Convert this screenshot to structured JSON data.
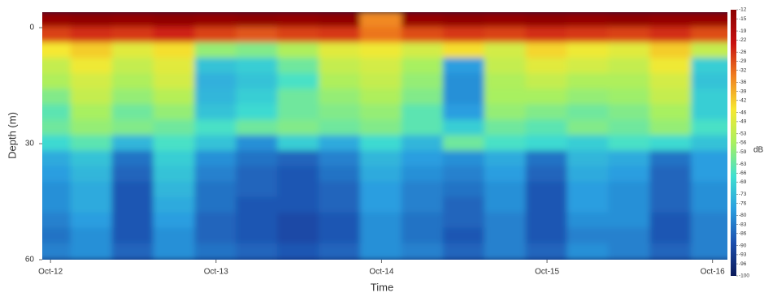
{
  "chart_data": {
    "type": "heatmap",
    "xlabel": "Time",
    "ylabel": "Depth (m)",
    "zlabel": "dB",
    "x": [
      12.0,
      12.25,
      12.5,
      12.75,
      13.0,
      13.25,
      13.5,
      13.75,
      14.0,
      14.25,
      14.5,
      14.75,
      15.0,
      15.25,
      15.5,
      15.75,
      16.0
    ],
    "y": [
      -2,
      2,
      6,
      10,
      14,
      18,
      22,
      26,
      30,
      34,
      38,
      42,
      46,
      50,
      54,
      58
    ],
    "values": [
      [
        -14,
        -13,
        -14,
        -13,
        -14,
        -13,
        -14,
        -13,
        -35,
        -14,
        -13,
        -14,
        -13,
        -14,
        -13,
        -14,
        -14
      ],
      [
        -28,
        -26,
        -27,
        -25,
        -28,
        -30,
        -28,
        -27,
        -33,
        -29,
        -27,
        -28,
        -26,
        -27,
        -28,
        -26,
        -29
      ],
      [
        -45,
        -42,
        -48,
        -44,
        -58,
        -60,
        -55,
        -48,
        -46,
        -50,
        -44,
        -50,
        -43,
        -46,
        -48,
        -42,
        -52
      ],
      [
        -52,
        -46,
        -52,
        -48,
        -72,
        -70,
        -62,
        -52,
        -50,
        -56,
        -78,
        -52,
        -48,
        -50,
        -52,
        -46,
        -70
      ],
      [
        -55,
        -50,
        -55,
        -50,
        -75,
        -72,
        -66,
        -55,
        -52,
        -58,
        -80,
        -55,
        -52,
        -55,
        -55,
        -50,
        -72
      ],
      [
        -60,
        -52,
        -58,
        -54,
        -74,
        -70,
        -62,
        -58,
        -55,
        -60,
        -80,
        -56,
        -56,
        -58,
        -57,
        -52,
        -70
      ],
      [
        -64,
        -56,
        -62,
        -58,
        -72,
        -68,
        -62,
        -60,
        -58,
        -64,
        -78,
        -58,
        -60,
        -62,
        -60,
        -56,
        -70
      ],
      [
        -62,
        -58,
        -60,
        -62,
        -66,
        -62,
        -60,
        -62,
        -60,
        -64,
        -70,
        -62,
        -64,
        -60,
        -62,
        -58,
        -66
      ],
      [
        -68,
        -64,
        -74,
        -66,
        -72,
        -80,
        -70,
        -76,
        -68,
        -74,
        -62,
        -66,
        -68,
        -70,
        -66,
        -68,
        -72
      ],
      [
        -76,
        -72,
        -84,
        -70,
        -80,
        -84,
        -86,
        -82,
        -74,
        -78,
        -80,
        -76,
        -84,
        -74,
        -76,
        -84,
        -78
      ],
      [
        -78,
        -74,
        -86,
        -72,
        -82,
        -86,
        -88,
        -84,
        -76,
        -80,
        -82,
        -78,
        -86,
        -76,
        -78,
        -86,
        -78
      ],
      [
        -80,
        -76,
        -88,
        -74,
        -84,
        -86,
        -88,
        -86,
        -78,
        -82,
        -84,
        -80,
        -88,
        -78,
        -80,
        -86,
        -80
      ],
      [
        -80,
        -76,
        -88,
        -76,
        -84,
        -88,
        -88,
        -86,
        -78,
        -82,
        -86,
        -80,
        -88,
        -78,
        -80,
        -86,
        -80
      ],
      [
        -82,
        -78,
        -88,
        -78,
        -86,
        -88,
        -90,
        -88,
        -80,
        -84,
        -86,
        -82,
        -88,
        -80,
        -80,
        -88,
        -82
      ],
      [
        -84,
        -80,
        -88,
        -80,
        -86,
        -88,
        -90,
        -88,
        -80,
        -84,
        -88,
        -82,
        -88,
        -82,
        -82,
        -88,
        -82
      ],
      [
        -82,
        -80,
        -86,
        -80,
        -84,
        -86,
        -88,
        -86,
        -80,
        -82,
        -86,
        -82,
        -86,
        -80,
        -82,
        -86,
        -82
      ]
    ],
    "xlim": [
      11.95,
      16.09
    ],
    "xticks": [
      {
        "value": 12,
        "label": "Oct-12"
      },
      {
        "value": 13,
        "label": "Oct-13"
      },
      {
        "value": 14,
        "label": "Oct-14"
      },
      {
        "value": 15,
        "label": "Oct-15"
      },
      {
        "value": 16,
        "label": "Oct-16"
      }
    ],
    "ylim": [
      60,
      -4
    ],
    "yticks": [
      0,
      30,
      60
    ],
    "zlim": [
      -100,
      -12
    ],
    "zticks": [
      -12,
      -15,
      -19,
      -22,
      -26,
      -29,
      -32,
      -36,
      -39,
      -42,
      -46,
      -49,
      -53,
      -56,
      -59,
      -63,
      -66,
      -69,
      -73,
      -76,
      -80,
      -83,
      -86,
      -90,
      -93,
      -96,
      -100
    ],
    "colorscale": [
      "#0b1a5a",
      "#1c4fae",
      "#2a9ee0",
      "#3fe0d0",
      "#a8f060",
      "#f6e830",
      "#f08020",
      "#c81010",
      "#8a0000"
    ]
  }
}
